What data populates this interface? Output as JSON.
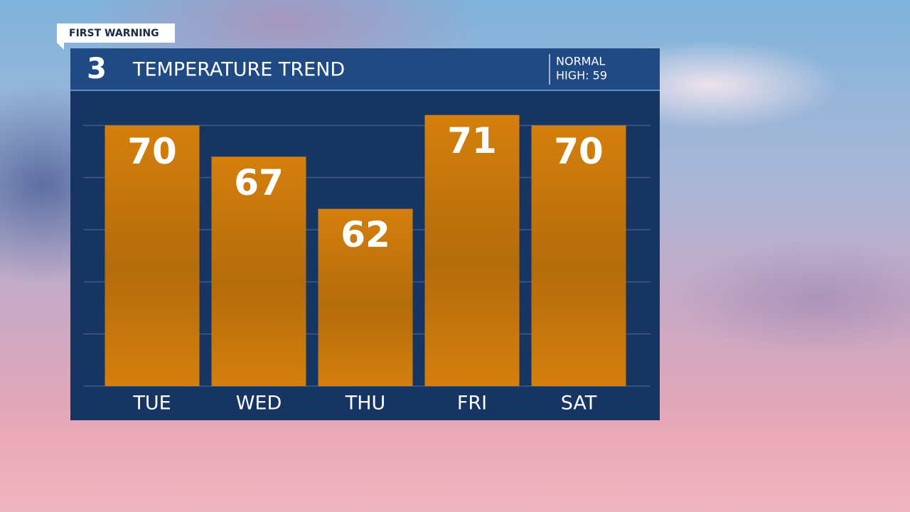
{
  "chart_data": {
    "type": "bar",
    "tag": "FIRST WARNING",
    "logo": "3",
    "title": "TEMPERATURE TREND",
    "normal_label": "NORMAL",
    "normal_value_label": "HIGH: 59",
    "categories": [
      "TUE",
      "WED",
      "THU",
      "FRI",
      "SAT"
    ],
    "values": [
      70,
      67,
      62,
      71,
      70
    ],
    "color": "#d47f0d",
    "ylim": [
      45,
      75
    ],
    "yticks": [
      45,
      50,
      55,
      60,
      65,
      70
    ],
    "grid": true
  }
}
